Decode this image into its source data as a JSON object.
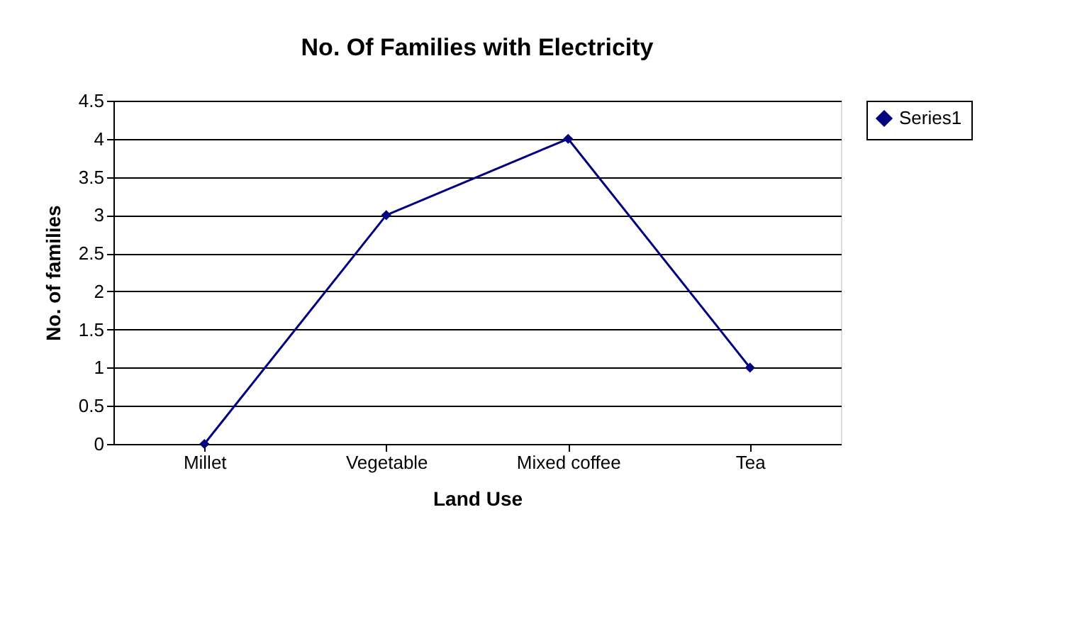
{
  "chart_data": {
    "type": "line",
    "title": "No. Of Families with Electricity",
    "xlabel": "Land Use",
    "ylabel": "No. of families",
    "categories": [
      "Millet",
      "Vegetable",
      "Mixed coffee",
      "Tea"
    ],
    "series": [
      {
        "name": "Series1",
        "color": "#000080",
        "values": [
          0,
          3,
          4,
          1
        ]
      }
    ],
    "ylim": [
      0,
      4.5
    ],
    "yticks": [
      0,
      0.5,
      1,
      1.5,
      2,
      2.5,
      3,
      3.5,
      4,
      4.5
    ],
    "grid": "y",
    "legend": "right",
    "marker": "diamond",
    "line_style": "solid"
  }
}
